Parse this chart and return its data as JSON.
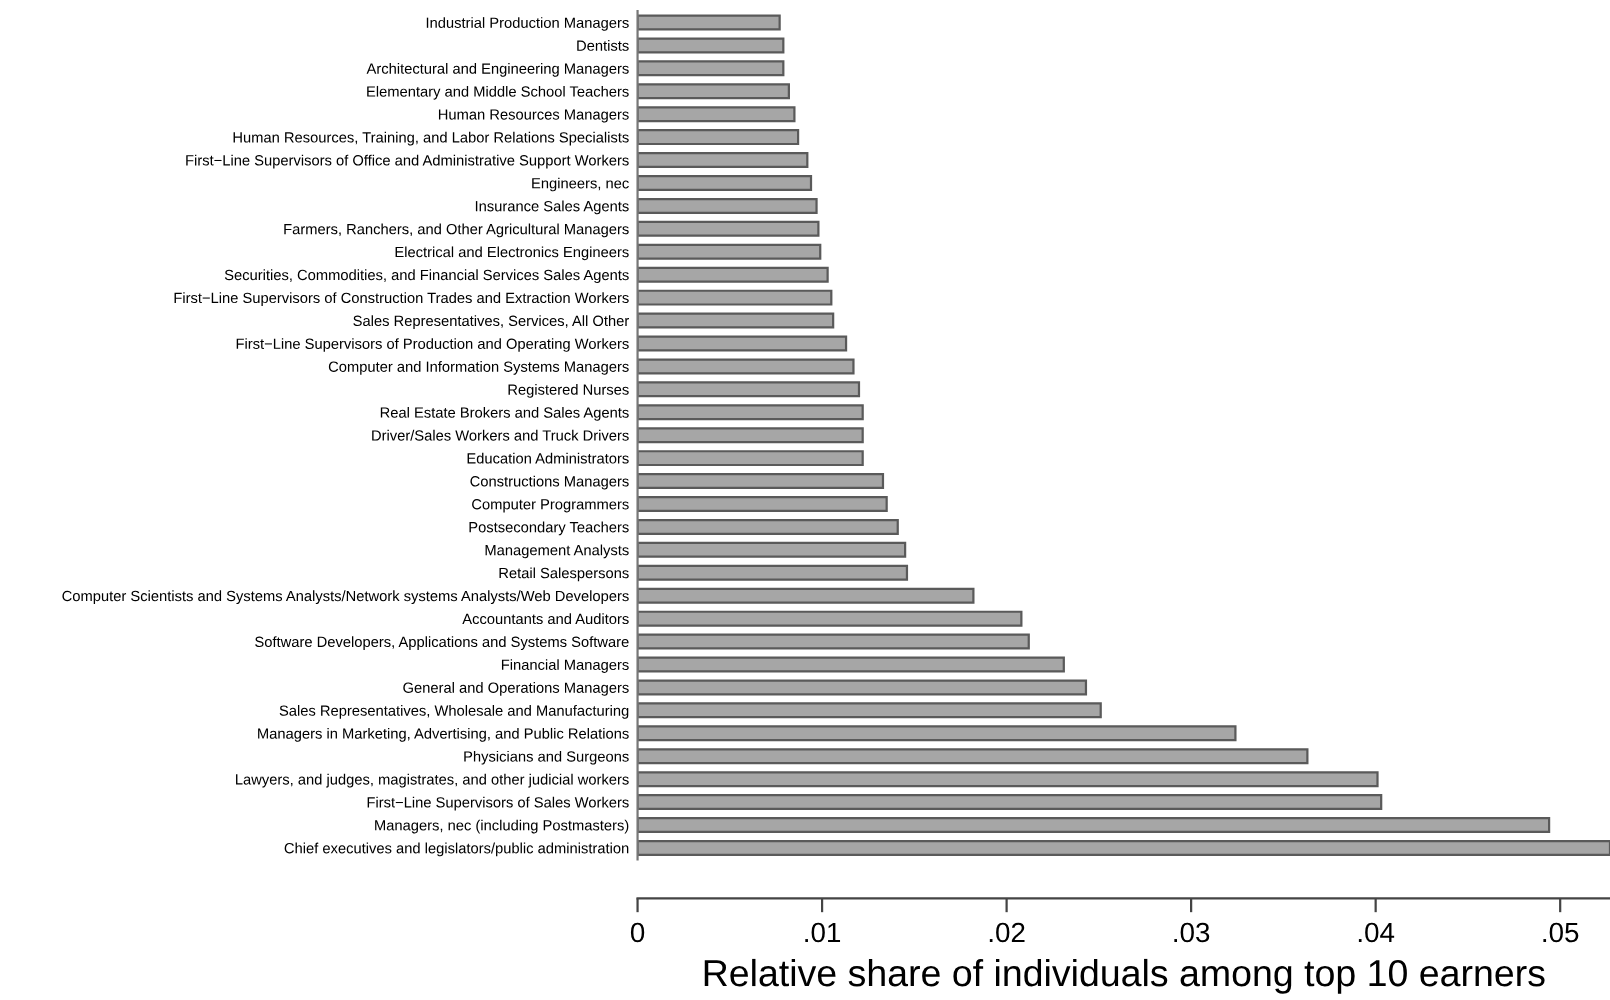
{
  "chart_data": {
    "type": "bar",
    "orientation": "horizontal",
    "xlabel": "Relative share of individuals among top 10 earners",
    "categories": [
      "Industrial Production Managers",
      "Dentists",
      "Architectural and Engineering Managers",
      "Elementary and Middle School Teachers",
      "Human Resources Managers",
      "Human Resources, Training, and Labor Relations Specialists",
      "First−Line Supervisors of Office and Administrative Support Workers",
      "Engineers, nec",
      "Insurance Sales Agents",
      "Farmers, Ranchers, and Other Agricultural Managers",
      "Electrical and Electronics Engineers",
      "Securities, Commodities, and Financial Services Sales Agents",
      "First−Line Supervisors of Construction Trades and Extraction Workers",
      "Sales Representatives, Services, All Other",
      "First−Line Supervisors of Production and Operating Workers",
      "Computer and Information Systems Managers",
      "Registered Nurses",
      "Real Estate Brokers and Sales Agents",
      "Driver/Sales Workers and Truck Drivers",
      "Education Administrators",
      "Constructions Managers",
      "Computer Programmers",
      "Postsecondary Teachers",
      "Management Analysts",
      "Retail Salespersons",
      "Computer Scientists and Systems Analysts/Network systems Analysts/Web Developers",
      "Accountants and Auditors",
      "Software Developers, Applications and Systems Software",
      "Financial Managers",
      "General and Operations Managers",
      "Sales Representatives, Wholesale and Manufacturing",
      "Managers in Marketing, Advertising, and Public Relations",
      "Physicians and Surgeons",
      "Lawyers, and judges, magistrates, and other judicial workers",
      "First−Line Supervisors of Sales Workers",
      "Managers, nec (including Postmasters)",
      "Chief executives and legislators/public administration"
    ],
    "values": [
      0.0077,
      0.0079,
      0.0079,
      0.0082,
      0.0085,
      0.0087,
      0.0092,
      0.0094,
      0.0097,
      0.0098,
      0.0099,
      0.0103,
      0.0105,
      0.0106,
      0.0113,
      0.0117,
      0.012,
      0.0122,
      0.0122,
      0.0122,
      0.0133,
      0.0135,
      0.0141,
      0.0145,
      0.0146,
      0.0182,
      0.0208,
      0.0212,
      0.0231,
      0.0243,
      0.0251,
      0.0324,
      0.0363,
      0.0401,
      0.0403,
      0.0494,
      0.0527
    ],
    "color": "#a6a6a6",
    "xlim": [
      0,
      0.0527
    ],
    "xticks": [
      {
        "value": 0,
        "label": "0"
      },
      {
        "value": 0.01,
        "label": ".01"
      },
      {
        "value": 0.02,
        "label": ".02"
      },
      {
        "value": 0.03,
        "label": ".03"
      },
      {
        "value": 0.04,
        "label": ".04"
      },
      {
        "value": 0.05,
        "label": ".05"
      }
    ],
    "grid": false,
    "legend": false
  }
}
